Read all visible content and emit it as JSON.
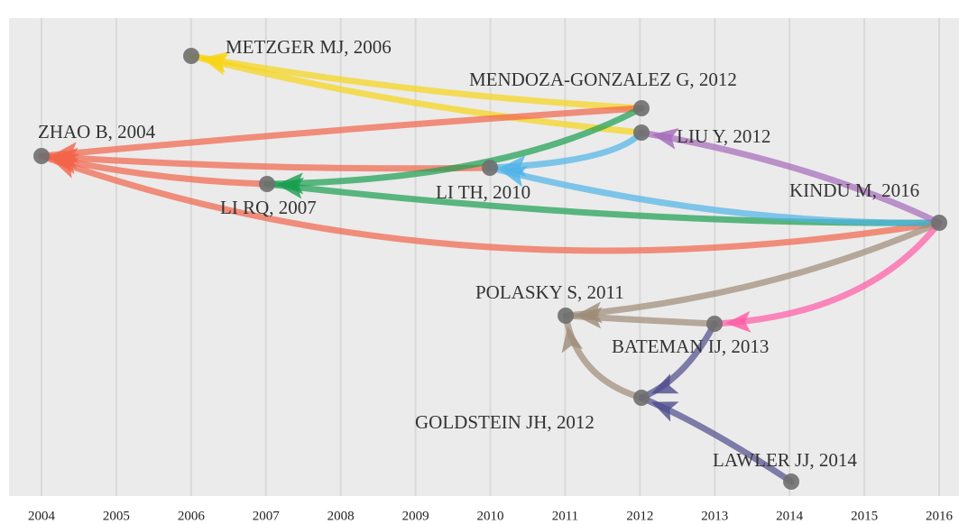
{
  "axis": {
    "ticks": [
      "2004",
      "2005",
      "2006",
      "2007",
      "2008",
      "2009",
      "2010",
      "2011",
      "2012",
      "2013",
      "2014",
      "2015",
      "2016"
    ]
  },
  "nodes": [
    {
      "label": "METZGER MJ, 2006"
    },
    {
      "label": "MENDOZA-GONZALEZ G, 2012"
    },
    {
      "label": "LIU Y, 2012"
    },
    {
      "label": "ZHAO B, 2004"
    },
    {
      "label": "LI TH, 2010"
    },
    {
      "label": "LI RQ, 2007"
    },
    {
      "label": "KINDU M, 2016"
    },
    {
      "label": "POLASKY S, 2011"
    },
    {
      "label": "BATEMAN IJ, 2013"
    },
    {
      "label": "GOLDSTEIN JH, 2012"
    },
    {
      "label": "LAWLER JJ, 2014"
    }
  ]
}
